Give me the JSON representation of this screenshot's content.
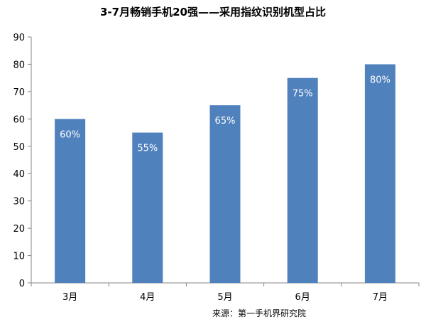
{
  "chart_data": {
    "type": "bar",
    "title": "3-7月畅销手机20强——采用指纹识别机型占比",
    "categories": [
      "3月",
      "4月",
      "5月",
      "6月",
      "7月"
    ],
    "values": [
      60,
      55,
      65,
      75,
      80
    ],
    "data_labels": [
      "60%",
      "55%",
      "65%",
      "75%",
      "80%"
    ],
    "ylim": [
      0,
      90
    ],
    "y_ticks": [
      0,
      10,
      20,
      30,
      40,
      50,
      60,
      70,
      80,
      90
    ],
    "bar_color": "#4F81BD",
    "grid": false,
    "legend": "none"
  },
  "source": "来源：第一手机界研究院"
}
